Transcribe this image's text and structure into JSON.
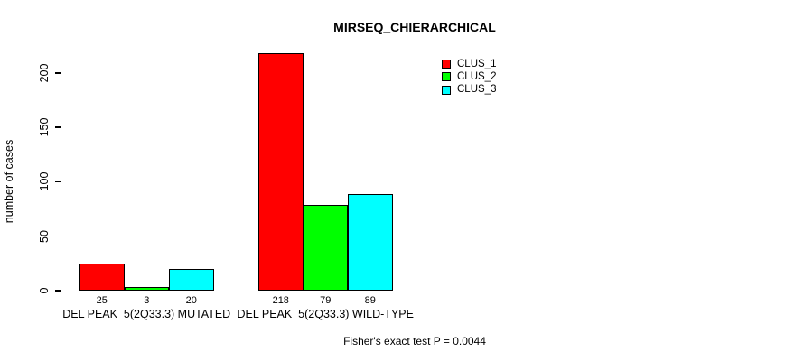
{
  "title": "MIRSEQ_CHIERARCHICAL",
  "footer": "Fisher's exact test P = 0.0044",
  "colors": {
    "clus_1": "#ff0000",
    "clus_2": "#00ff00",
    "clus_3": "#00ffff",
    "axis": "#000000",
    "background": "#ffffff"
  },
  "chart_data": {
    "type": "bar",
    "title": "MIRSEQ_CHIERARCHICAL",
    "xlabel": "",
    "ylabel": "number of cases",
    "ylim": [
      0,
      220
    ],
    "y_ticks": [
      0,
      50,
      100,
      150,
      200
    ],
    "grid": false,
    "legend_position": "top-right",
    "categories": [
      "DEL PEAK  5(2Q33.3) MUTATED",
      "DEL PEAK  5(2Q33.3) WILD-TYPE"
    ],
    "series": [
      {
        "name": "CLUS_1",
        "color": "#ff0000",
        "values": [
          25,
          218
        ]
      },
      {
        "name": "CLUS_2",
        "color": "#00ff00",
        "values": [
          3,
          79
        ]
      },
      {
        "name": "CLUS_3",
        "color": "#00ffff",
        "values": [
          20,
          89
        ]
      }
    ],
    "bar_value_labels": [
      [
        25,
        3,
        20
      ],
      [
        218,
        79,
        89
      ]
    ],
    "annotation": "Fisher's exact test P = 0.0044"
  }
}
